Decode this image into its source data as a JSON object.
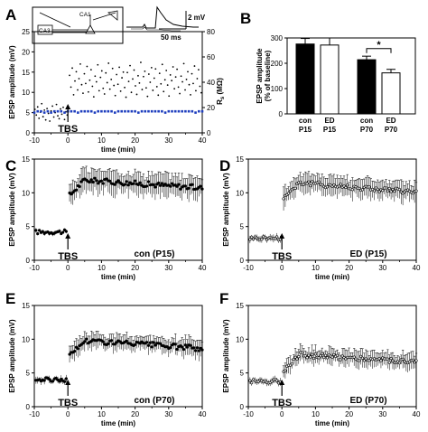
{
  "panel_labels": {
    "a": "A",
    "b": "B",
    "c": "C",
    "d": "D",
    "e": "E",
    "f": "F"
  },
  "arrow_label": "TBS",
  "inset": {
    "circuit_labels": [
      "CA1",
      "CA3"
    ],
    "scale_label": "2 mV",
    "time_label": "50 ms"
  },
  "chart_data": [
    {
      "id": "A",
      "type": "scatter",
      "xlabel": "time (min)",
      "ylabel": "EPSP amplitude (mV)",
      "y2label": "Rs (MΩ)",
      "xlim": [
        -10,
        40
      ],
      "ylim": [
        0,
        25
      ],
      "y2lim": [
        0,
        80
      ],
      "xticks": [
        -10,
        0,
        10,
        20,
        30,
        40
      ],
      "yticks": [
        0,
        5,
        10,
        15,
        20,
        25
      ],
      "y2ticks": [
        0,
        20,
        40,
        60,
        80
      ],
      "series": [
        {
          "role": "epsp_pre",
          "x": [
            -9.8,
            -9.4,
            -9.0,
            -8.6,
            -8.2,
            -7.8,
            -7.4,
            -7.0,
            -6.6,
            -6.2,
            -5.8,
            -5.4,
            -5.0,
            -4.6,
            -4.2,
            -3.8,
            -3.4,
            -3.0,
            -2.6,
            -2.2,
            -1.8,
            -1.4,
            -1.0,
            -0.6,
            -0.2
          ],
          "y": [
            5.8,
            4.4,
            6.4,
            3.6,
            5.1,
            7.2,
            4.0,
            5.6,
            3.2,
            6.0,
            4.8,
            2.9,
            5.4,
            6.6,
            3.9,
            5.0,
            7.0,
            4.2,
            3.5,
            5.9,
            4.6,
            6.3,
            3.3,
            5.2,
            4.4
          ]
        },
        {
          "role": "epsp_post",
          "x": [
            0.5,
            0.9,
            1.3,
            1.7,
            2.1,
            2.5,
            2.9,
            3.3,
            3.7,
            4.1,
            4.5,
            4.9,
            5.3,
            5.7,
            6.1,
            6.5,
            6.9,
            7.3,
            7.7,
            8.1,
            8.5,
            8.9,
            9.3,
            9.7,
            10.1,
            10.5,
            10.9,
            11.3,
            11.7,
            12.1,
            12.5,
            12.9,
            13.3,
            13.7,
            14.1,
            14.5,
            14.9,
            15.3,
            15.7,
            16.1,
            16.5,
            16.9,
            17.3,
            17.7,
            18.1,
            18.5,
            18.9,
            19.3,
            19.7,
            20.1,
            20.5,
            20.9,
            21.3,
            21.7,
            22.1,
            22.5,
            22.9,
            23.3,
            23.7,
            24.1,
            24.5,
            24.9,
            25.3,
            25.7,
            26.1,
            26.5,
            26.9,
            27.3,
            27.7,
            28.1,
            28.5,
            28.9,
            29.3,
            29.7,
            30.1,
            30.5,
            30.9,
            31.3,
            31.7,
            32.1,
            32.5,
            32.9,
            33.3,
            33.7,
            34.1,
            34.5,
            34.9,
            35.3,
            35.7,
            36.1,
            36.5,
            36.9,
            37.3,
            37.7,
            38.1,
            38.5,
            38.9,
            39.3,
            39.7
          ],
          "y": [
            14.2,
            11.3,
            16.0,
            9.4,
            12.8,
            15.1,
            10.6,
            13.4,
            17.0,
            11.9,
            9.8,
            14.6,
            12.2,
            16.4,
            10.1,
            13.0,
            15.6,
            11.5,
            8.9,
            14.0,
            12.6,
            16.8,
            10.4,
            13.7,
            15.3,
            11.0,
            9.6,
            14.8,
            12.4,
            17.2,
            10.8,
            13.2,
            15.9,
            11.7,
            9.2,
            14.4,
            12.0,
            16.2,
            10.3,
            13.6,
            15.0,
            11.2,
            8.8,
            14.9,
            12.7,
            16.6,
            10.0,
            13.3,
            15.5,
            11.6,
            9.5,
            14.1,
            12.3,
            17.4,
            10.7,
            13.9,
            15.2,
            11.1,
            9.0,
            14.5,
            12.5,
            16.1,
            10.5,
            13.5,
            15.8,
            11.4,
            9.3,
            14.7,
            12.1,
            16.9,
            10.2,
            13.1,
            15.4,
            11.8,
            9.1,
            14.3,
            12.9,
            16.3,
            10.9,
            13.8,
            15.7,
            11.3,
            9.7,
            14.0,
            12.6,
            17.1,
            10.6,
            13.2,
            15.1,
            11.9,
            9.4,
            14.6,
            12.2,
            16.5,
            10.4,
            13.4,
            15.6,
            11.5,
            9.9
          ]
        },
        {
          "role": "rs_access",
          "x": [
            -10,
            -9,
            -8,
            -7,
            -6,
            -5,
            -4,
            -3,
            -2,
            -1,
            0,
            1,
            2,
            3,
            4,
            5,
            6,
            7,
            8,
            9,
            10,
            11,
            12,
            13,
            14,
            15,
            16,
            17,
            18,
            19,
            20,
            21,
            22,
            23,
            24,
            25,
            26,
            27,
            28,
            29,
            30,
            31,
            32,
            33,
            34,
            35,
            36,
            37,
            38,
            39,
            40
          ],
          "y": [
            16,
            17,
            17,
            16,
            17,
            16,
            17,
            17,
            17,
            16,
            17,
            17,
            17,
            16,
            17,
            17,
            17,
            17,
            16,
            17,
            17,
            17,
            17,
            17,
            16,
            17,
            17,
            17,
            17,
            17,
            17,
            16,
            17,
            17,
            17,
            17,
            17,
            17,
            17,
            16,
            17,
            17,
            17,
            17,
            17,
            17,
            17,
            17,
            16,
            17,
            17
          ]
        }
      ]
    },
    {
      "id": "B",
      "type": "bar",
      "ylabel": "EPSP amplitude",
      "ylabel2": "(% of baseline)",
      "ylim": [
        0,
        300
      ],
      "yticks": [
        0,
        100,
        200,
        300
      ],
      "categories": [
        [
          "con",
          "P15"
        ],
        [
          "ED",
          "P15"
        ],
        [
          "con",
          "P70"
        ],
        [
          "ED",
          "P70"
        ]
      ],
      "values": [
        276,
        272,
        214,
        162
      ],
      "errors": [
        22,
        28,
        14,
        14
      ],
      "significance": "*"
    },
    {
      "id": "C",
      "type": "scatter",
      "condition": "con (P15)",
      "xlabel": "time (min)",
      "ylabel": "EPSP amplitude (mV)",
      "xlim": [
        -10,
        40
      ],
      "ylim": [
        0,
        15
      ],
      "xticks": [
        -10,
        0,
        10,
        20,
        30,
        40
      ],
      "yticks": [
        0,
        5,
        10,
        15
      ],
      "baseline_mean": 4.2,
      "post_mean": 11.0,
      "post_peak": 11.9,
      "baseline_sem": 0.3,
      "post_sem": 1.6
    },
    {
      "id": "D",
      "type": "scatter",
      "condition": "ED (P15)",
      "xlabel": "time (min)",
      "ylabel": "EPSP amplitude (mV)",
      "xlim": [
        -10,
        40
      ],
      "ylim": [
        0,
        15
      ],
      "xticks": [
        -10,
        0,
        10,
        20,
        30,
        40
      ],
      "yticks": [
        0,
        5,
        10,
        15
      ],
      "baseline_mean": 3.3,
      "post_mean": 10.4,
      "post_peak": 11.5,
      "baseline_sem": 0.5,
      "post_sem": 1.4
    },
    {
      "id": "E",
      "type": "scatter",
      "condition": "con (P70)",
      "xlabel": "time (min)",
      "ylabel": "EPSP amplitude (mV)",
      "xlim": [
        -10,
        40
      ],
      "ylim": [
        0,
        15
      ],
      "xticks": [
        -10,
        0,
        10,
        20,
        30,
        40
      ],
      "yticks": [
        0,
        5,
        10,
        15
      ],
      "baseline_mean": 4.0,
      "post_mean": 8.9,
      "post_peak": 9.8,
      "baseline_sem": 0.5,
      "post_sem": 1.2
    },
    {
      "id": "F",
      "type": "scatter",
      "condition": "ED (P70)",
      "xlabel": "time (min)",
      "ylabel": "EPSP amplitude (mV)",
      "xlim": [
        -10,
        40
      ],
      "ylim": [
        0,
        15
      ],
      "xticks": [
        -10,
        0,
        10,
        20,
        30,
        40
      ],
      "yticks": [
        0,
        5,
        10,
        15
      ],
      "baseline_mean": 3.8,
      "post_mean": 6.9,
      "post_peak": 7.7,
      "baseline_sem": 0.5,
      "post_sem": 1.1
    }
  ],
  "colors": {
    "ink": "#000000",
    "rs_series": "#1f3fbf",
    "filled_bar": "#000000",
    "open_bar": "#ffffff"
  }
}
